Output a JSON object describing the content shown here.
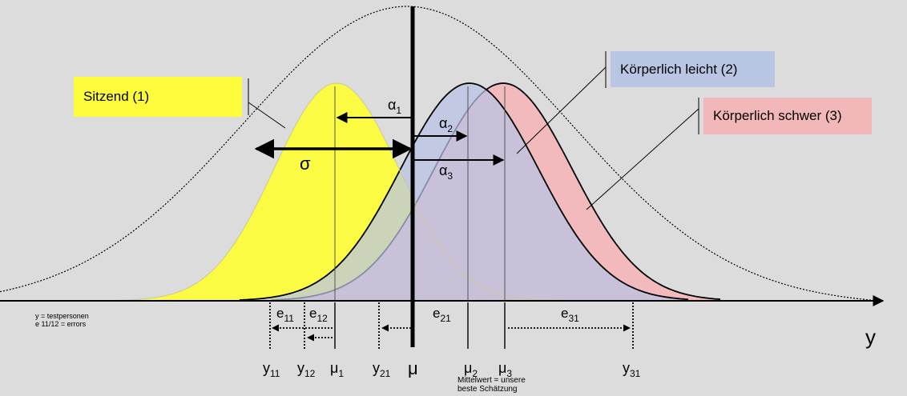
{
  "labels": {
    "group1": "Sitzend (1)",
    "group2": "Körperlich leicht (2)",
    "group3": "Körperlich schwer (3)",
    "sigma": "σ",
    "alpha": "α",
    "mu": "μ",
    "y_axis": "y",
    "alpha_subs": [
      "1",
      "2",
      "3"
    ],
    "error_labels": [
      {
        "base": "e",
        "sub": "11"
      },
      {
        "base": "e",
        "sub": "12"
      },
      {
        "base": "e",
        "sub": "21"
      },
      {
        "base": "e",
        "sub": "31"
      }
    ],
    "axis_ticks": [
      {
        "base": "y",
        "sub": "11"
      },
      {
        "base": "y",
        "sub": "12"
      },
      {
        "base": "μ",
        "sub": "1"
      },
      {
        "base": "y",
        "sub": "21"
      },
      {
        "base": "μ",
        "sub": ""
      },
      {
        "base": "μ",
        "sub": "2"
      },
      {
        "base": "μ",
        "sub": "3"
      },
      {
        "base": "y",
        "sub": "31"
      }
    ],
    "legend_small": [
      "y = testpersonen",
      "e 11/12 = errors"
    ],
    "mean_note": [
      "Mittelwert = unsere",
      "beste Schätzung"
    ]
  },
  "colors": {
    "background": "#dcdcdc",
    "group1": "#fdfc3a",
    "group2": "#b5c3e3",
    "group3": "#f2b7b9",
    "overlap": "#c8c8d0"
  }
}
